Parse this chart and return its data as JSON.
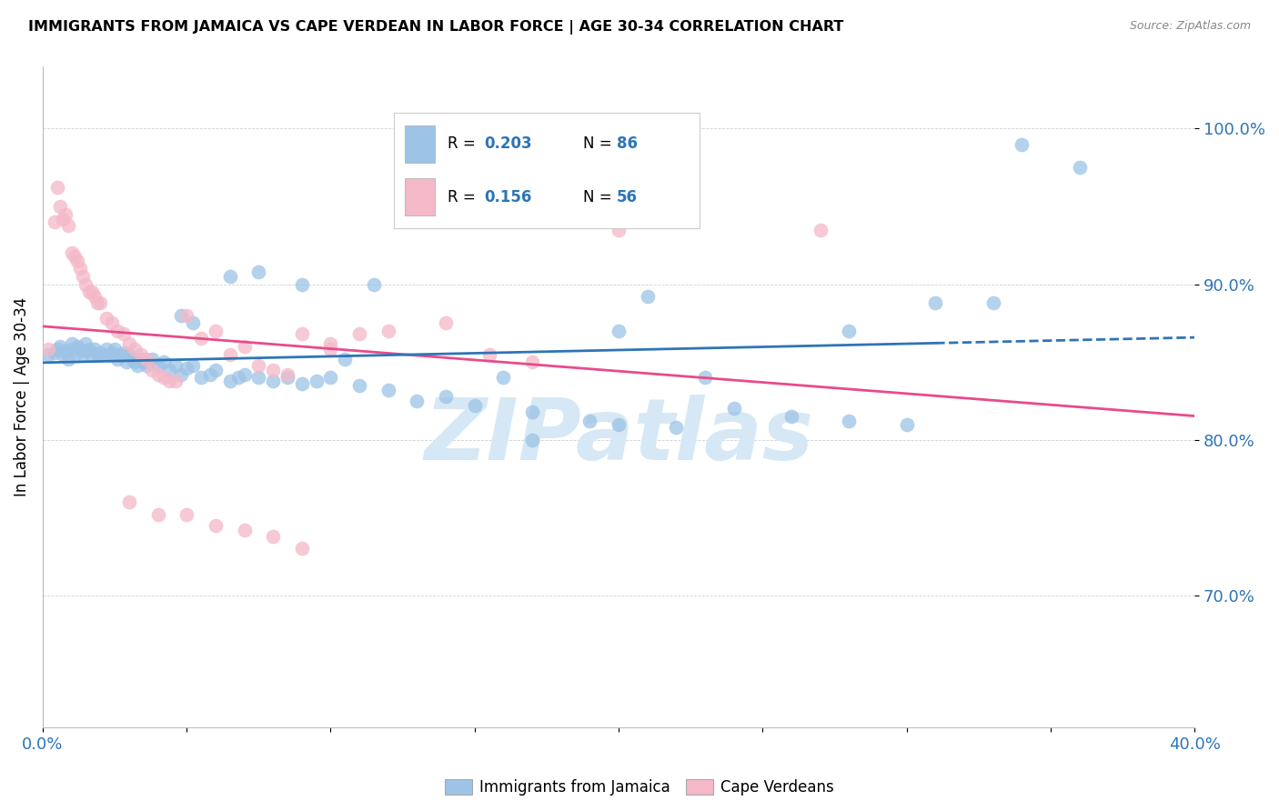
{
  "title": "IMMIGRANTS FROM JAMAICA VS CAPE VERDEAN IN LABOR FORCE | AGE 30-34 CORRELATION CHART",
  "source": "Source: ZipAtlas.com",
  "ylabel": "In Labor Force | Age 30-34",
  "ytick_labels": [
    "70.0%",
    "80.0%",
    "90.0%",
    "100.0%"
  ],
  "ytick_values": [
    0.7,
    0.8,
    0.9,
    1.0
  ],
  "xlim": [
    0.0,
    0.4
  ],
  "ylim": [
    0.615,
    1.04
  ],
  "text_blue": "#2e75b6",
  "blue_color": "#9dc3e6",
  "pink_color": "#f4b8c8",
  "line_blue": "#2e75b6",
  "line_pink": "#e84b8a",
  "watermark_color": "#d6e8f5",
  "legend_r1": "R =  0.203",
  "legend_n1": "N = 86",
  "legend_r2": "R =  0.156",
  "legend_n2": "N = 56",
  "blue_scatter_x": [
    0.002,
    0.004,
    0.005,
    0.006,
    0.007,
    0.008,
    0.009,
    0.01,
    0.01,
    0.011,
    0.012,
    0.013,
    0.014,
    0.015,
    0.015,
    0.016,
    0.017,
    0.018,
    0.019,
    0.02,
    0.021,
    0.022,
    0.023,
    0.024,
    0.025,
    0.026,
    0.027,
    0.028,
    0.029,
    0.03,
    0.031,
    0.032,
    0.033,
    0.034,
    0.035,
    0.036,
    0.038,
    0.04,
    0.042,
    0.044,
    0.046,
    0.048,
    0.05,
    0.052,
    0.055,
    0.058,
    0.06,
    0.065,
    0.068,
    0.07,
    0.075,
    0.08,
    0.085,
    0.09,
    0.095,
    0.1,
    0.11,
    0.12,
    0.13,
    0.14,
    0.15,
    0.16,
    0.17,
    0.19,
    0.2,
    0.22,
    0.24,
    0.26,
    0.28,
    0.3,
    0.048,
    0.052,
    0.065,
    0.075,
    0.09,
    0.105,
    0.115,
    0.17,
    0.2,
    0.21,
    0.23,
    0.28,
    0.31,
    0.33,
    0.34,
    0.36
  ],
  "blue_scatter_y": [
    0.855,
    0.856,
    0.858,
    0.86,
    0.855,
    0.857,
    0.852,
    0.858,
    0.862,
    0.855,
    0.86,
    0.858,
    0.855,
    0.857,
    0.862,
    0.858,
    0.855,
    0.858,
    0.855,
    0.856,
    0.855,
    0.858,
    0.855,
    0.856,
    0.858,
    0.852,
    0.855,
    0.856,
    0.85,
    0.855,
    0.852,
    0.85,
    0.848,
    0.852,
    0.85,
    0.848,
    0.852,
    0.848,
    0.85,
    0.845,
    0.848,
    0.842,
    0.846,
    0.848,
    0.84,
    0.842,
    0.845,
    0.838,
    0.84,
    0.842,
    0.84,
    0.838,
    0.84,
    0.836,
    0.838,
    0.84,
    0.835,
    0.832,
    0.825,
    0.828,
    0.822,
    0.84,
    0.818,
    0.812,
    0.81,
    0.808,
    0.82,
    0.815,
    0.812,
    0.81,
    0.88,
    0.875,
    0.905,
    0.908,
    0.9,
    0.852,
    0.9,
    0.8,
    0.87,
    0.892,
    0.84,
    0.87,
    0.888,
    0.888,
    0.99,
    0.975
  ],
  "pink_scatter_x": [
    0.002,
    0.004,
    0.005,
    0.006,
    0.007,
    0.008,
    0.009,
    0.01,
    0.011,
    0.012,
    0.013,
    0.014,
    0.015,
    0.016,
    0.017,
    0.018,
    0.019,
    0.02,
    0.022,
    0.024,
    0.026,
    0.028,
    0.03,
    0.032,
    0.034,
    0.036,
    0.038,
    0.04,
    0.042,
    0.044,
    0.046,
    0.05,
    0.055,
    0.06,
    0.065,
    0.07,
    0.075,
    0.08,
    0.085,
    0.09,
    0.1,
    0.11,
    0.12,
    0.14,
    0.155,
    0.17,
    0.2,
    0.03,
    0.04,
    0.05,
    0.06,
    0.07,
    0.08,
    0.09,
    0.1,
    0.27
  ],
  "pink_scatter_y": [
    0.858,
    0.94,
    0.962,
    0.95,
    0.942,
    0.945,
    0.938,
    0.92,
    0.918,
    0.915,
    0.91,
    0.905,
    0.9,
    0.895,
    0.895,
    0.892,
    0.888,
    0.888,
    0.878,
    0.875,
    0.87,
    0.868,
    0.862,
    0.858,
    0.855,
    0.852,
    0.845,
    0.842,
    0.84,
    0.838,
    0.838,
    0.88,
    0.865,
    0.87,
    0.855,
    0.86,
    0.848,
    0.845,
    0.842,
    0.868,
    0.858,
    0.868,
    0.87,
    0.875,
    0.855,
    0.85,
    0.935,
    0.76,
    0.752,
    0.752,
    0.745,
    0.742,
    0.738,
    0.73,
    0.862,
    0.935
  ]
}
